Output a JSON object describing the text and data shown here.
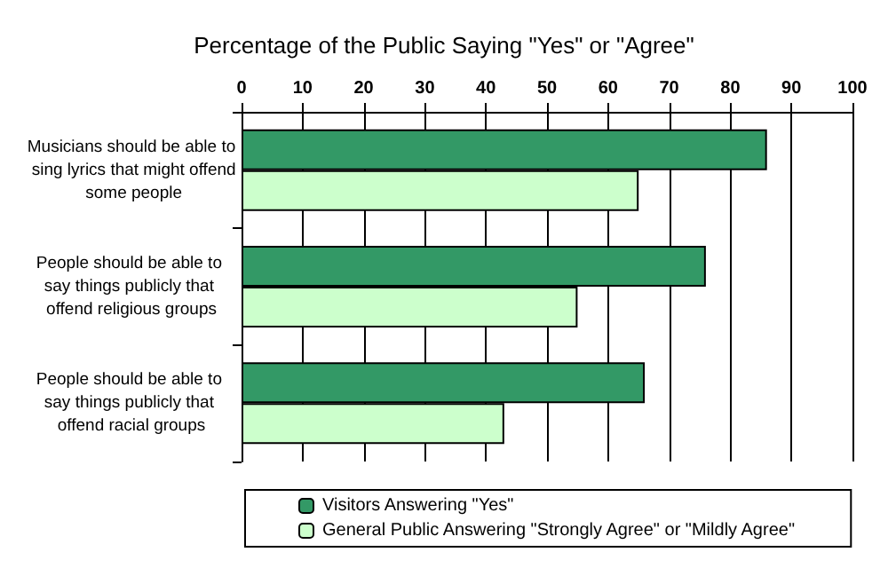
{
  "chart_data": {
    "type": "bar",
    "orientation": "horizontal",
    "title": "Percentage of the Public Saying \"Yes\" or \"Agree\"",
    "categories": [
      "Musicians should be able to sing lyrics that might offend some people",
      "People should be able to say things publicly that offend religious groups",
      "People should be able to say things publicly that offend racial groups"
    ],
    "series": [
      {
        "name": "Visitors Answering \"Yes\"",
        "color": "#339966",
        "values": [
          86,
          76,
          66
        ]
      },
      {
        "name": "General Public Answering \"Strongly Agree\" or \"Mildly Agree\"",
        "color": "#ccffcc",
        "values": [
          65,
          55,
          43
        ]
      }
    ],
    "xlim": [
      0,
      100
    ],
    "xticks": [
      0,
      10,
      20,
      30,
      40,
      50,
      60,
      70,
      80,
      90,
      100
    ],
    "grid": "x",
    "legend": "bottom"
  }
}
